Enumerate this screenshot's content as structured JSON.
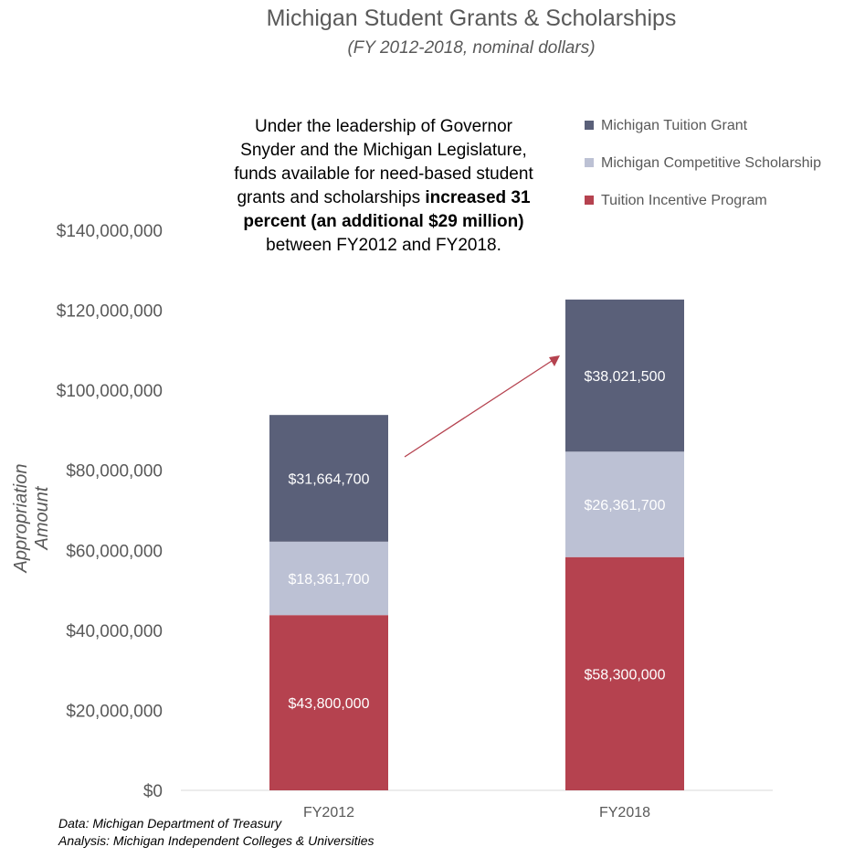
{
  "chart_data": {
    "type": "bar",
    "stacked": true,
    "title": "Michigan Student Grants & Scholarships",
    "subtitle": "(FY 2012-2018, nominal dollars)",
    "ylabel": "Appropriation Amount",
    "xlabel": "",
    "categories": [
      "FY2012",
      "FY2018"
    ],
    "ylim": [
      0,
      140000000
    ],
    "yticks": [
      0,
      20000000,
      40000000,
      60000000,
      80000000,
      100000000,
      120000000,
      140000000
    ],
    "ytick_labels": [
      "$0",
      "$20,000,000",
      "$40,000,000",
      "$60,000,000",
      "$80,000,000",
      "$100,000,000",
      "$120,000,000",
      "$140,000,000"
    ],
    "grid": false,
    "legend_position": "top-right",
    "series": [
      {
        "name": "Tuition Incentive Program",
        "color": "#b5424f",
        "values": [
          43800000,
          58300000
        ],
        "labels": [
          "$43,800,000",
          "$58,300,000"
        ]
      },
      {
        "name": "Michigan Competitive Scholarship",
        "color": "#bcc1d4",
        "values": [
          18361700,
          26361700
        ],
        "labels": [
          "$18,361,700",
          "$26,361,700"
        ]
      },
      {
        "name": "Michigan Tuition Grant",
        "color": "#5a6079",
        "values": [
          31664700,
          38021500
        ],
        "labels": [
          "$31,664,700",
          "$38,021,500"
        ]
      }
    ],
    "legend": [
      {
        "label": "Michigan Tuition Grant",
        "color": "#5a6079"
      },
      {
        "label": "Michigan Competitive Scholarship",
        "color": "#bcc1d4"
      },
      {
        "label": "Tuition Incentive Program",
        "color": "#b5424f"
      }
    ],
    "annotation": {
      "text_before": "Under the leadership of Governor Snyder and the Michigan Legislature, funds available for need-based student grants and scholarships",
      "text_bold": "increased 31 percent (an additional $29 million)",
      "text_after": "between FY2012 and FY2018."
    },
    "arrow_color": "#b5424f"
  },
  "footer": {
    "data_source": "Data: Michigan Department of Treasury",
    "analysis": "Analysis: Michigan Independent Colleges & Universities"
  }
}
